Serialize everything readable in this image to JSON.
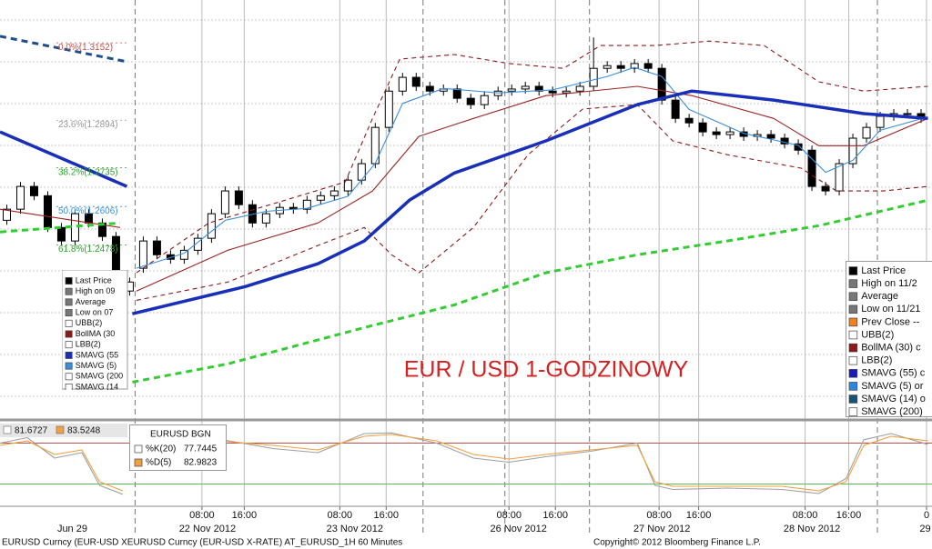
{
  "chart_data": [
    {
      "type": "candlestick",
      "annotation": "EUR / USD 1-GODZINOWY",
      "xlim": [
        -0.5,
        67.8
      ],
      "ylim": [
        1.19,
        1.3295
      ],
      "up_color": "#ffffff",
      "down_color": "#000000",
      "open": [
        1.256,
        1.2597,
        1.2673,
        1.2642,
        1.2536,
        1.2491,
        1.2582,
        1.2551,
        1.2506,
        1.2324,
        1.24,
        1.2491,
        1.2445,
        1.243,
        1.246,
        1.25,
        1.2582,
        1.2658,
        1.2612,
        1.2551,
        1.2582,
        1.2603,
        1.2597,
        1.2627,
        1.2642,
        1.2658,
        1.2694,
        1.2749,
        1.287,
        1.2991,
        1.3037,
        1.3007,
        1.2991,
        1.2998,
        1.2967,
        1.2946,
        1.2976,
        1.2991,
        1.2998,
        1.3007,
        1.2991,
        1.2985,
        1.2991,
        1.3007,
        1.3067,
        1.3076,
        1.3067,
        1.3083,
        1.3067,
        1.2961,
        1.29,
        1.2885,
        1.2855,
        1.2846,
        1.2855,
        1.284,
        1.2846,
        1.2834,
        1.2815,
        1.2794,
        1.2673,
        1.2658,
        1.2749,
        1.2834,
        1.287,
        1.2907,
        1.2916,
        1.2916
      ],
      "high": [
        1.2612,
        1.2688,
        1.2688,
        1.2657,
        1.2551,
        1.2597,
        1.2597,
        1.2566,
        1.2521,
        1.2369,
        1.2506,
        1.2506,
        1.246,
        1.2475,
        1.2515,
        1.2597,
        1.2673,
        1.2673,
        1.2627,
        1.2597,
        1.2618,
        1.2618,
        1.2642,
        1.2657,
        1.2673,
        1.2709,
        1.2764,
        1.2885,
        1.3006,
        1.3052,
        1.3052,
        1.3022,
        1.3013,
        1.3013,
        1.2982,
        1.2991,
        1.3006,
        1.3013,
        1.3022,
        1.3022,
        1.3006,
        1.3006,
        1.3022,
        1.317,
        1.3091,
        1.3091,
        1.3098,
        1.3098,
        1.3082,
        1.2976,
        1.2915,
        1.29,
        1.287,
        1.287,
        1.287,
        1.2861,
        1.2861,
        1.2849,
        1.283,
        1.2809,
        1.2688,
        1.2764,
        1.2849,
        1.2885,
        1.2922,
        1.2931,
        1.2931,
        1.2931
      ],
      "low": [
        1.2545,
        1.2582,
        1.2627,
        1.2521,
        1.2476,
        1.2476,
        1.2536,
        1.2491,
        1.2309,
        1.2309,
        1.2385,
        1.243,
        1.2415,
        1.2415,
        1.2445,
        1.2485,
        1.2567,
        1.2597,
        1.2536,
        1.2536,
        1.2567,
        1.2582,
        1.2582,
        1.2612,
        1.2627,
        1.2643,
        1.2679,
        1.2734,
        1.2855,
        1.2976,
        1.2992,
        1.2976,
        1.2976,
        1.2952,
        1.2931,
        1.2931,
        1.2961,
        1.2976,
        1.2983,
        1.2976,
        1.297,
        1.297,
        1.2976,
        1.2992,
        1.3052,
        1.3052,
        1.3052,
        1.3052,
        1.2946,
        1.2885,
        1.287,
        1.284,
        1.2831,
        1.2831,
        1.2825,
        1.2825,
        1.2819,
        1.28,
        1.2779,
        1.2658,
        1.2643,
        1.2643,
        1.2734,
        1.2819,
        1.2855,
        1.2892,
        1.2901,
        1.2885
      ],
      "close": [
        1.2597,
        1.2673,
        1.2642,
        1.2536,
        1.2491,
        1.2582,
        1.2551,
        1.2506,
        1.2324,
        1.2354,
        1.2491,
        1.2445,
        1.243,
        1.246,
        1.25,
        1.2582,
        1.2658,
        1.2612,
        1.2551,
        1.2582,
        1.2603,
        1.2597,
        1.2627,
        1.2642,
        1.2658,
        1.2694,
        1.2749,
        1.287,
        1.2991,
        1.3037,
        1.3007,
        1.2991,
        1.2998,
        1.2967,
        1.2946,
        1.2976,
        1.2991,
        1.2998,
        1.3007,
        1.2991,
        1.2985,
        1.2991,
        1.3007,
        1.3067,
        1.3076,
        1.3067,
        1.3083,
        1.3067,
        1.2961,
        1.29,
        1.2885,
        1.2855,
        1.2846,
        1.2855,
        1.284,
        1.2846,
        1.2834,
        1.2815,
        1.2794,
        1.2673,
        1.2658,
        1.2749,
        1.2834,
        1.287,
        1.2907,
        1.2916,
        1.2916,
        1.29
      ],
      "series": [
        {
          "color": "#8b1a1a",
          "style": "dashed",
          "x": [
            9.5,
            14.8,
            21.5,
            24.8,
            26.8,
            28.8,
            32.8,
            36.8,
            40.8,
            43.5,
            47.5,
            51.5,
            55.5,
            59.5,
            62.8,
            67.5
          ],
          "values": [
            1.2385,
            1.2551,
            1.2642,
            1.2688,
            1.29,
            1.3098,
            1.3113,
            1.3083,
            1.3067,
            1.3143,
            1.3143,
            1.3158,
            1.3143,
            1.3022,
            1.2991,
            1.3007
          ]
        },
        {
          "color": "#8b1a1a",
          "style": "dashed",
          "x": [
            9.5,
            16.2,
            22.8,
            26.2,
            28.2,
            30.2,
            34.2,
            38.2,
            42.2,
            46.2,
            48.8,
            52.8,
            58.2,
            60.8,
            64.2,
            67.5
          ],
          "values": [
            1.2293,
            1.2354,
            1.2476,
            1.2536,
            1.2445,
            1.2385,
            1.2536,
            1.2779,
            1.2931,
            1.2946,
            1.2825,
            1.2779,
            1.2734,
            1.2658,
            1.2658,
            1.2673
          ]
        },
        {
          "color": "#9b2323",
          "style": "thin",
          "x": [
            -0.5,
            8.3,
            8.8,
            9.5,
            16.2,
            22.8,
            26.8,
            30.2,
            34.2,
            39.5,
            46.2,
            50.2,
            56.2,
            59.5,
            62.8,
            67.5
          ],
          "values": [
            1.2597,
            1.2536,
            null,
            1.2324,
            1.246,
            1.2551,
            1.2658,
            1.284,
            1.29,
            1.2976,
            1.3007,
            1.2976,
            1.29,
            1.2809,
            1.2809,
            1.29
          ]
        },
        {
          "color": "#3a8fd8",
          "style": "thin",
          "x": [
            9.5,
            13,
            16,
            19,
            22,
            25,
            27,
            29,
            32,
            36,
            40,
            44,
            46,
            48,
            50,
            54,
            58,
            60,
            62,
            64,
            67.5
          ],
          "values": [
            1.24,
            1.245,
            1.256,
            1.259,
            1.26,
            1.264,
            1.275,
            1.295,
            1.3,
            1.2985,
            1.2995,
            1.304,
            1.307,
            1.304,
            1.293,
            1.285,
            1.281,
            1.272,
            1.276,
            1.286,
            1.2905
          ]
        },
        {
          "color": "#1f4e8c",
          "style": "thick-dashed",
          "x": [
            -0.5,
            8.8
          ],
          "values": [
            1.3174,
            1.3089
          ]
        },
        {
          "color": "#33cc33",
          "style": "thick-dashed",
          "x": [
            -0.5,
            8.3,
            8.8,
            9.2,
            16.2,
            26.2,
            32.8,
            39.5,
            46.2,
            52.8,
            59.5,
            67.5
          ],
          "values": [
            1.2521,
            1.2551,
            null,
            1.202,
            1.2081,
            1.2202,
            1.2278,
            1.2385,
            1.2445,
            1.2491,
            1.2542,
            1.2627
          ]
        },
        {
          "color": "#1a2fb8",
          "style": "thick",
          "x": [
            -0.5,
            8.8,
            9.0,
            9.2,
            17.5,
            22.8,
            26.2,
            29.5,
            32.8,
            39.5,
            46.2,
            50.2,
            56.2,
            62.8,
            67.5
          ],
          "values": [
            1.2855,
            1.2673,
            null,
            1.2248,
            1.2339,
            1.2415,
            1.2491,
            1.2627,
            1.2718,
            1.2825,
            1.2946,
            1.2991,
            1.2961,
            1.2916,
            1.29
          ]
        }
      ],
      "fib_levels": [
        {
          "label": "0.0%(1.3152)",
          "value": 1.3152,
          "color": "#c0504d"
        },
        {
          "label": "23.6%(1.2894)",
          "value": 1.2894,
          "color": "#999999"
        },
        {
          "label": "38.2%(1.2735)",
          "value": 1.2735,
          "color": "#2ca02c"
        },
        {
          "label": "50.0%(1.2606)",
          "value": 1.2606,
          "color": "#3a8fd8"
        },
        {
          "label": "61.8%(1.2478)",
          "value": 1.2478,
          "color": "#2ca02c"
        }
      ],
      "xticks": [
        {
          "value": 14.3,
          "label": "08:00"
        },
        {
          "value": 17.4,
          "label": "16:00"
        },
        {
          "value": 24.4,
          "label": "08:00"
        },
        {
          "value": 27.8,
          "label": "16:00"
        },
        {
          "value": 36.8,
          "label": "08:00"
        },
        {
          "value": 40.2,
          "label": "16:00"
        },
        {
          "value": 47.8,
          "label": "08:00"
        },
        {
          "value": 50.7,
          "label": "16:00"
        },
        {
          "value": 58.5,
          "label": "08:00"
        },
        {
          "value": 61.7,
          "label": "16:00"
        },
        {
          "value": 67.4,
          "label": "0"
        }
      ],
      "date_labels": [
        {
          "value": 4.8,
          "label": "Jun 29"
        },
        {
          "value": 14.7,
          "label": "22 Nov 2012"
        },
        {
          "value": 25.5,
          "label": "23 Nov 2012"
        },
        {
          "value": 37.5,
          "label": "26 Nov 2012"
        },
        {
          "value": 48.0,
          "label": "27 Nov 2012"
        },
        {
          "value": 59.0,
          "label": "28 Nov 2012"
        },
        {
          "value": 67.3,
          "label": "29"
        }
      ],
      "day_breaks": [
        9.4,
        30.5,
        36.5,
        42.7,
        63.8
      ],
      "legend_left": [
        {
          "label": "Last Price",
          "color": "#000000"
        },
        {
          "label": "High on 09",
          "color": "#777777"
        },
        {
          "label": "Average",
          "color": "#777777"
        },
        {
          "label": "Low on 07",
          "color": "#777777"
        },
        {
          "label": "UBB(2)",
          "color": "#ffffff"
        },
        {
          "label": "BollMA (30",
          "color": "#8b1a1a"
        },
        {
          "label": "LBB(2)",
          "color": "#ffffff"
        },
        {
          "label": "SMAVG (55",
          "color": "#1a2fb8"
        },
        {
          "label": "SMAVG (5)",
          "color": "#3a8fd8"
        },
        {
          "label": "SMAVG (200",
          "color": "#ffffff"
        },
        {
          "label": "SMAVG (14",
          "color": "#ffffff"
        }
      ],
      "legend_right": [
        {
          "label": "Last Price",
          "color": "#000000"
        },
        {
          "label": "High on 11/2",
          "color": "#777777"
        },
        {
          "label": "Average",
          "color": "#777777"
        },
        {
          "label": "Low on 11/21",
          "color": "#777777"
        },
        {
          "label": "Prev Close --",
          "color": "#f08020"
        },
        {
          "label": "UBB(2)",
          "color": "#ffffff"
        },
        {
          "label": "BollMA (30) c",
          "color": "#8b1a1a"
        },
        {
          "label": "LBB(2)",
          "color": "#ffffff"
        },
        {
          "label": "SMAVG (55) c",
          "color": "#1a1ab8"
        },
        {
          "label": "SMAVG (5) or",
          "color": "#2e86de"
        },
        {
          "label": "SMAVG (14) o",
          "color": "#1a5276"
        },
        {
          "label": "SMAVG (200)",
          "color": "#ffffff"
        }
      ]
    },
    {
      "type": "line",
      "xlim": [
        -0.5,
        67.8
      ],
      "ylim": [
        -10,
        110
      ],
      "ref_lines": [
        {
          "value": 80,
          "color": "#c0504d"
        },
        {
          "value": 20,
          "color": "#5cb85c"
        }
      ],
      "series": [
        {
          "color": "#a0a0a0",
          "style": "thin",
          "x": [
            -0.5,
            1.5,
            3.5,
            5.5,
            6.8,
            8.5,
            8.9,
            9.2,
            12.8,
            15.5,
            19.5,
            22.8,
            26.2,
            28.2,
            31.5,
            34.2,
            36.8,
            39.5,
            42.8,
            46.2,
            47.5,
            48.8,
            52.8,
            56.8,
            59.5,
            61.5,
            62.8,
            64.8,
            67.5
          ],
          "values": [
            80,
            88,
            58,
            66,
            18,
            5,
            null,
            60,
            80,
            86,
            72,
            66,
            94,
            95,
            80,
            58,
            52,
            60,
            68,
            80,
            18,
            12,
            14,
            12,
            6,
            28,
            85,
            94,
            78
          ]
        },
        {
          "color": "#f0a040",
          "style": "thin",
          "x": [
            -0.5,
            1.5,
            3.5,
            5.5,
            6.8,
            8.5,
            8.9,
            9.2,
            12.8,
            15.5,
            19.5,
            22.8,
            26.2,
            28.2,
            31.5,
            34.2,
            36.8,
            39.5,
            42.8,
            46.2,
            47.5,
            48.8,
            52.8,
            56.8,
            59.5,
            61.5,
            62.8,
            64.8,
            67.5
          ],
          "values": [
            76.7,
            83.3,
            63.3,
            70,
            23.3,
            10,
            null,
            63.3,
            76.7,
            83.3,
            76.7,
            70,
            90,
            92.7,
            83.3,
            63.3,
            56.7,
            63.3,
            70,
            76.7,
            23.3,
            16.7,
            16.7,
            16.7,
            10,
            23.3,
            76.7,
            90,
            83.3
          ]
        }
      ],
      "left_values": [
        {
          "value": 81.6727,
          "color": "#ffffff"
        },
        {
          "value": 83.5248,
          "color": "#f0a040"
        }
      ],
      "legend": {
        "title": "EURUSD BGN",
        "items": [
          {
            "label": "%K(20)",
            "value": 77.7445,
            "color": "#ffffff"
          },
          {
            "label": "%D(5)",
            "value": 82.9823,
            "color": "#f0a040"
          }
        ]
      }
    }
  ],
  "footer": {
    "left": "EURUSD Curncy (EUR-USD XEURUSD Curncy (EUR-USD X-RATE) AT_EURUSD_1H  60 Minutes",
    "right": "Copyright© 2012 Bloomberg Finance L.P."
  }
}
